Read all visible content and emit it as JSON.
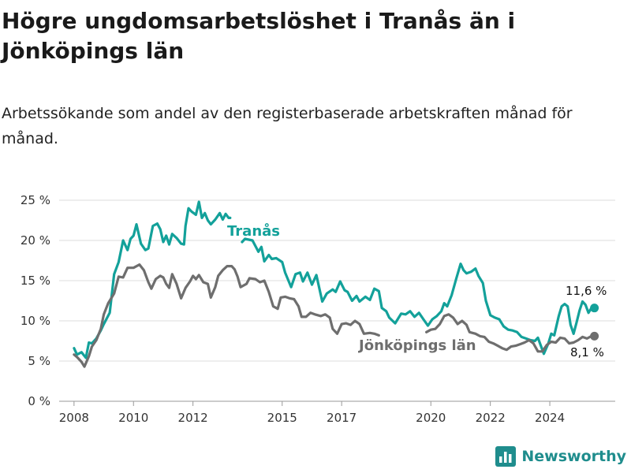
{
  "title": "Högre ungdomsarbetslöshet i Tranås än i Jönköpings län",
  "subtitle": "Arbetssökande som andel av den registerbaserade arbetskraften månad för månad.",
  "brand": {
    "name": "Newsworthy",
    "icon": "bar-chart-logo-icon"
  },
  "colors": {
    "tranas": "#13a19a",
    "jonkoping": "#6e6e6e",
    "grid": "#dcdcdc"
  },
  "chart_data": {
    "type": "line",
    "title": "Högre ungdomsarbetslöshet i Tranås än i Jönköpings län",
    "xlabel": "",
    "ylabel": "",
    "xlim": [
      2007.5,
      2026.2
    ],
    "ylim": [
      0,
      25
    ],
    "yticks": [
      0,
      5,
      10,
      15,
      20,
      25
    ],
    "ytick_labels": [
      "0 %",
      "5 %",
      "10 %",
      "15 %",
      "20 %",
      "25 %"
    ],
    "xticks": [
      2008,
      2010,
      2012,
      2015,
      2017,
      2020,
      2022,
      2024
    ],
    "xtick_labels": [
      "2008",
      "2010",
      "2012",
      "2015",
      "2017",
      "2020",
      "2022",
      "2024"
    ],
    "grid": "horizontal",
    "series": [
      {
        "name": "Tranås",
        "end_label": "11,6 %",
        "points": [
          [
            2008.0,
            6.6
          ],
          [
            2008.1,
            5.8
          ],
          [
            2008.25,
            6.1
          ],
          [
            2008.4,
            5.4
          ],
          [
            2008.5,
            7.3
          ],
          [
            2008.6,
            7.2
          ],
          [
            2008.75,
            7.8
          ],
          [
            2008.9,
            8.8
          ],
          [
            2009.0,
            9.6
          ],
          [
            2009.2,
            11.0
          ],
          [
            2009.35,
            15.8
          ],
          [
            2009.5,
            17.3
          ],
          [
            2009.65,
            20.0
          ],
          [
            2009.8,
            18.8
          ],
          [
            2009.9,
            20.2
          ],
          [
            2010.0,
            20.6
          ],
          [
            2010.1,
            22.0
          ],
          [
            2010.25,
            19.6
          ],
          [
            2010.4,
            18.8
          ],
          [
            2010.5,
            19.0
          ],
          [
            2010.65,
            21.8
          ],
          [
            2010.8,
            22.1
          ],
          [
            2010.9,
            21.4
          ],
          [
            2011.0,
            19.8
          ],
          [
            2011.1,
            20.6
          ],
          [
            2011.2,
            19.5
          ],
          [
            2011.3,
            20.8
          ],
          [
            2011.45,
            20.3
          ],
          [
            2011.6,
            19.6
          ],
          [
            2011.7,
            19.5
          ],
          [
            2011.75,
            21.8
          ],
          [
            2011.85,
            24.0
          ],
          [
            2011.95,
            23.6
          ],
          [
            2012.1,
            23.2
          ],
          [
            2012.2,
            24.8
          ],
          [
            2012.3,
            22.8
          ],
          [
            2012.4,
            23.4
          ],
          [
            2012.5,
            22.5
          ],
          [
            2012.6,
            22.0
          ],
          [
            2012.75,
            22.6
          ],
          [
            2012.9,
            23.4
          ],
          [
            2013.0,
            22.6
          ],
          [
            2013.1,
            23.3
          ],
          [
            2013.2,
            22.8
          ],
          [
            2013.25,
            22.8
          ],
          [
            2013.65,
            19.8
          ],
          [
            2013.75,
            20.2
          ],
          [
            2014.0,
            20.0
          ],
          [
            2014.2,
            18.6
          ],
          [
            2014.3,
            19.2
          ],
          [
            2014.4,
            17.4
          ],
          [
            2014.55,
            18.2
          ],
          [
            2014.65,
            17.7
          ],
          [
            2014.8,
            17.8
          ],
          [
            2015.0,
            17.3
          ],
          [
            2015.1,
            16.0
          ],
          [
            2015.3,
            14.2
          ],
          [
            2015.45,
            15.8
          ],
          [
            2015.6,
            16.0
          ],
          [
            2015.7,
            14.9
          ],
          [
            2015.85,
            16.0
          ],
          [
            2016.0,
            14.5
          ],
          [
            2016.15,
            15.7
          ],
          [
            2016.35,
            12.4
          ],
          [
            2016.5,
            13.4
          ],
          [
            2016.7,
            13.9
          ],
          [
            2016.8,
            13.6
          ],
          [
            2016.95,
            14.9
          ],
          [
            2017.1,
            13.8
          ],
          [
            2017.2,
            13.6
          ],
          [
            2017.35,
            12.5
          ],
          [
            2017.5,
            13.1
          ],
          [
            2017.6,
            12.4
          ],
          [
            2017.8,
            13.0
          ],
          [
            2017.95,
            12.6
          ],
          [
            2018.1,
            14.0
          ],
          [
            2018.25,
            13.7
          ],
          [
            2018.35,
            11.6
          ],
          [
            2018.5,
            11.2
          ],
          [
            2018.6,
            10.4
          ],
          [
            2018.8,
            9.7
          ],
          [
            2019.0,
            10.9
          ],
          [
            2019.15,
            10.8
          ],
          [
            2019.3,
            11.2
          ],
          [
            2019.45,
            10.5
          ],
          [
            2019.6,
            11.0
          ],
          [
            2019.75,
            10.2
          ],
          [
            2019.9,
            9.4
          ],
          [
            2020.05,
            10.2
          ],
          [
            2020.2,
            10.6
          ],
          [
            2020.35,
            11.2
          ],
          [
            2020.45,
            12.2
          ],
          [
            2020.55,
            11.8
          ],
          [
            2020.7,
            13.2
          ],
          [
            2020.85,
            15.2
          ],
          [
            2021.0,
            17.1
          ],
          [
            2021.1,
            16.3
          ],
          [
            2021.2,
            15.9
          ],
          [
            2021.35,
            16.1
          ],
          [
            2021.5,
            16.5
          ],
          [
            2021.6,
            15.6
          ],
          [
            2021.75,
            14.7
          ],
          [
            2021.85,
            12.5
          ],
          [
            2022.0,
            10.7
          ],
          [
            2022.15,
            10.4
          ],
          [
            2022.3,
            10.2
          ],
          [
            2022.45,
            9.3
          ],
          [
            2022.6,
            8.9
          ],
          [
            2022.75,
            8.8
          ],
          [
            2022.9,
            8.6
          ],
          [
            2023.05,
            8.0
          ],
          [
            2023.2,
            7.8
          ],
          [
            2023.35,
            7.6
          ],
          [
            2023.5,
            7.5
          ],
          [
            2023.6,
            7.9
          ],
          [
            2023.7,
            6.9
          ],
          [
            2023.8,
            5.9
          ],
          [
            2023.95,
            7.2
          ],
          [
            2024.05,
            8.4
          ],
          [
            2024.15,
            8.2
          ],
          [
            2024.3,
            10.6
          ],
          [
            2024.4,
            11.8
          ],
          [
            2024.5,
            12.1
          ],
          [
            2024.6,
            11.8
          ],
          [
            2024.7,
            9.5
          ],
          [
            2024.8,
            8.4
          ],
          [
            2024.9,
            9.8
          ],
          [
            2025.0,
            11.3
          ],
          [
            2025.1,
            12.4
          ],
          [
            2025.2,
            12.0
          ],
          [
            2025.3,
            11.0
          ],
          [
            2025.4,
            11.6
          ],
          [
            2025.5,
            11.6
          ]
        ]
      },
      {
        "name": "Jönköpings län",
        "end_label": "8,1 %",
        "points": [
          [
            2008.0,
            5.8
          ],
          [
            2008.1,
            5.5
          ],
          [
            2008.25,
            4.9
          ],
          [
            2008.35,
            4.3
          ],
          [
            2008.5,
            5.6
          ],
          [
            2008.6,
            6.8
          ],
          [
            2008.75,
            7.6
          ],
          [
            2008.9,
            9.0
          ],
          [
            2009.0,
            10.8
          ],
          [
            2009.15,
            12.2
          ],
          [
            2009.35,
            13.4
          ],
          [
            2009.5,
            15.5
          ],
          [
            2009.65,
            15.4
          ],
          [
            2009.8,
            16.6
          ],
          [
            2010.0,
            16.6
          ],
          [
            2010.2,
            17.0
          ],
          [
            2010.35,
            16.3
          ],
          [
            2010.5,
            14.8
          ],
          [
            2010.6,
            14.0
          ],
          [
            2010.75,
            15.2
          ],
          [
            2010.9,
            15.6
          ],
          [
            2011.0,
            15.4
          ],
          [
            2011.1,
            14.6
          ],
          [
            2011.2,
            14.1
          ],
          [
            2011.3,
            15.8
          ],
          [
            2011.45,
            14.6
          ],
          [
            2011.6,
            12.8
          ],
          [
            2011.75,
            14.1
          ],
          [
            2011.9,
            14.9
          ],
          [
            2012.0,
            15.6
          ],
          [
            2012.1,
            15.2
          ],
          [
            2012.2,
            15.7
          ],
          [
            2012.35,
            14.8
          ],
          [
            2012.5,
            14.6
          ],
          [
            2012.6,
            12.9
          ],
          [
            2012.75,
            14.2
          ],
          [
            2012.85,
            15.6
          ],
          [
            2013.0,
            16.3
          ],
          [
            2013.15,
            16.8
          ],
          [
            2013.3,
            16.8
          ],
          [
            2013.4,
            16.4
          ],
          [
            2013.5,
            15.5
          ],
          [
            2013.6,
            14.2
          ],
          [
            2013.8,
            14.6
          ],
          [
            2013.9,
            15.3
          ],
          [
            2014.1,
            15.2
          ],
          [
            2014.25,
            14.8
          ],
          [
            2014.4,
            15.0
          ],
          [
            2014.55,
            13.6
          ],
          [
            2014.7,
            11.8
          ],
          [
            2014.85,
            11.5
          ],
          [
            2014.95,
            12.9
          ],
          [
            2015.1,
            13.0
          ],
          [
            2015.25,
            12.8
          ],
          [
            2015.4,
            12.7
          ],
          [
            2015.55,
            11.8
          ],
          [
            2015.65,
            10.5
          ],
          [
            2015.8,
            10.5
          ],
          [
            2015.95,
            11.0
          ],
          [
            2016.1,
            10.8
          ],
          [
            2016.3,
            10.6
          ],
          [
            2016.45,
            10.8
          ],
          [
            2016.6,
            10.4
          ],
          [
            2016.7,
            9.0
          ],
          [
            2016.85,
            8.4
          ],
          [
            2017.0,
            9.6
          ],
          [
            2017.15,
            9.7
          ],
          [
            2017.3,
            9.5
          ],
          [
            2017.45,
            10.0
          ],
          [
            2017.6,
            9.6
          ],
          [
            2017.75,
            8.4
          ],
          [
            2017.95,
            8.5
          ],
          [
            2018.1,
            8.4
          ],
          [
            2018.25,
            8.2
          ],
          [
            2019.85,
            8.6
          ],
          [
            2020.0,
            8.9
          ],
          [
            2020.15,
            9.0
          ],
          [
            2020.3,
            9.6
          ],
          [
            2020.45,
            10.6
          ],
          [
            2020.6,
            10.8
          ],
          [
            2020.75,
            10.4
          ],
          [
            2020.9,
            9.6
          ],
          [
            2021.05,
            10.0
          ],
          [
            2021.2,
            9.5
          ],
          [
            2021.3,
            8.6
          ],
          [
            2021.5,
            8.4
          ],
          [
            2021.65,
            8.1
          ],
          [
            2021.8,
            8.0
          ],
          [
            2021.95,
            7.4
          ],
          [
            2022.1,
            7.2
          ],
          [
            2022.25,
            6.9
          ],
          [
            2022.4,
            6.6
          ],
          [
            2022.55,
            6.4
          ],
          [
            2022.7,
            6.8
          ],
          [
            2022.85,
            6.9
          ],
          [
            2023.0,
            7.1
          ],
          [
            2023.15,
            7.3
          ],
          [
            2023.3,
            7.6
          ],
          [
            2023.45,
            7.2
          ],
          [
            2023.6,
            6.2
          ],
          [
            2023.75,
            6.2
          ],
          [
            2023.9,
            7.0
          ],
          [
            2024.05,
            7.4
          ],
          [
            2024.2,
            7.3
          ],
          [
            2024.35,
            7.9
          ],
          [
            2024.5,
            7.8
          ],
          [
            2024.65,
            7.2
          ],
          [
            2024.8,
            7.3
          ],
          [
            2024.95,
            7.6
          ],
          [
            2025.1,
            8.0
          ],
          [
            2025.25,
            7.8
          ],
          [
            2025.4,
            8.1
          ],
          [
            2025.5,
            8.1
          ]
        ]
      }
    ]
  }
}
